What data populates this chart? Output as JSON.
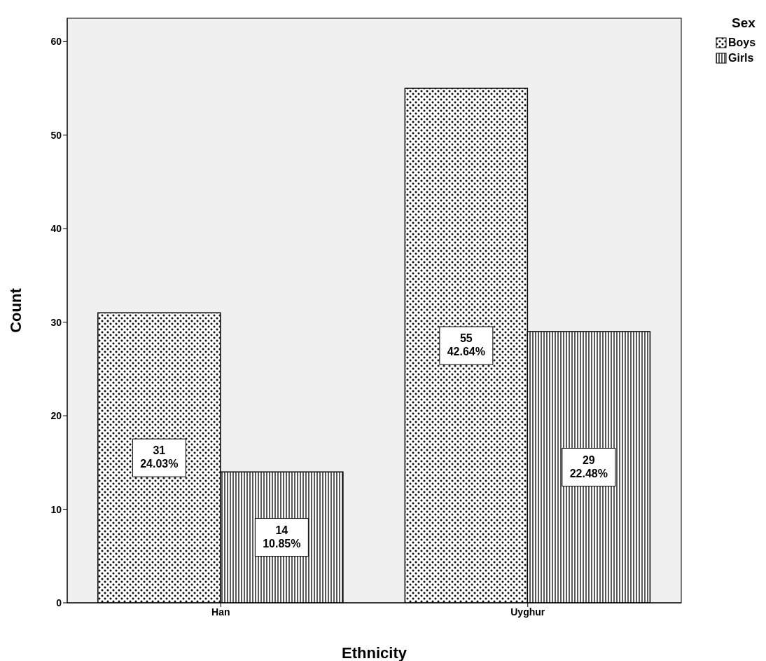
{
  "chart_data": {
    "type": "bar",
    "xlabel": "Ethnicity",
    "ylabel": "Count",
    "legend_title": "Sex",
    "categories": [
      "Han",
      "Uyghur"
    ],
    "series": [
      {
        "name": "Boys",
        "color": "#000000",
        "values": [
          31,
          55
        ],
        "value_labels": [
          "31\n24.03%",
          "55\n42.64%"
        ]
      },
      {
        "name": "Girls",
        "color": "#000000",
        "values": [
          14,
          29
        ],
        "value_labels": [
          "14\n10.85%",
          "29\n22.48%"
        ]
      }
    ],
    "ylim": [
      0,
      62.5
    ],
    "yticks": [
      0,
      10,
      20,
      30,
      40,
      50,
      60
    ],
    "grid": false,
    "legend": "top right"
  }
}
